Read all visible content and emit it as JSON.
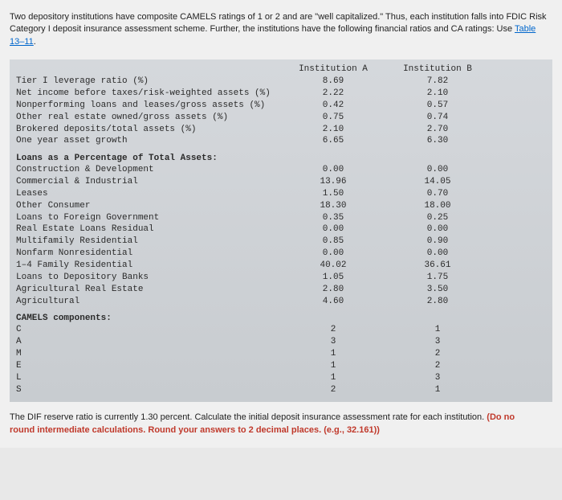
{
  "intro": {
    "p1a": "Two depository institutions have composite CAMELS ratings of 1 or 2 and are \"well capitalized.\" Thus, each institution falls into",
    "p1b": "FDIC Risk Category I deposit insurance assessment scheme. Further, the institutions have the following financial ratios and CA",
    "p1c": "ratings: Use ",
    "link": "Table 13–11",
    "period": "."
  },
  "headers": {
    "a": "Institution A",
    "b": "Institution B"
  },
  "topRows": [
    {
      "label": "Tier I leverage ratio (%)",
      "a": "8.69",
      "b": "7.82"
    },
    {
      "label": "Net income before taxes/risk-weighted assets (%)",
      "a": "2.22",
      "b": "2.10"
    },
    {
      "label": "Nonperforming loans and leases/gross assets (%)",
      "a": "0.42",
      "b": "0.57"
    },
    {
      "label": "Other real estate owned/gross assets (%)",
      "a": "0.75",
      "b": "0.74"
    },
    {
      "label": "Brokered deposits/total assets (%)",
      "a": "2.10",
      "b": "2.70"
    },
    {
      "label": "One year asset growth",
      "a": "6.65",
      "b": "6.30"
    }
  ],
  "loansTitle": "Loans as a Percentage of Total Assets:",
  "loansRows": [
    {
      "label": "Construction & Development",
      "a": "0.00",
      "b": "0.00"
    },
    {
      "label": "Commercial & Industrial",
      "a": "13.96",
      "b": "14.05"
    },
    {
      "label": "Leases",
      "a": "1.50",
      "b": "0.70"
    },
    {
      "label": "Other Consumer",
      "a": "18.30",
      "b": "18.00"
    },
    {
      "label": "Loans to Foreign Government",
      "a": "0.35",
      "b": "0.25"
    },
    {
      "label": "Real Estate Loans Residual",
      "a": "0.00",
      "b": "0.00"
    },
    {
      "label": "Multifamily Residential",
      "a": "0.85",
      "b": "0.90"
    },
    {
      "label": "Nonfarm Nonresidential",
      "a": "0.00",
      "b": "0.00"
    },
    {
      "label": "1–4 Family Residential",
      "a": "40.02",
      "b": "36.61"
    },
    {
      "label": "Loans to Depository Banks",
      "a": "1.05",
      "b": "1.75"
    },
    {
      "label": "Agricultural Real Estate",
      "a": "2.80",
      "b": "3.50"
    },
    {
      "label": "Agricultural",
      "a": "4.60",
      "b": "2.80"
    }
  ],
  "camelsTitle": "CAMELS components:",
  "camelsRows": [
    {
      "label": "C",
      "a": "2",
      "b": "1"
    },
    {
      "label": "A",
      "a": "3",
      "b": "3"
    },
    {
      "label": "M",
      "a": "1",
      "b": "2"
    },
    {
      "label": "E",
      "a": "1",
      "b": "2"
    },
    {
      "label": "L",
      "a": "1",
      "b": "3"
    },
    {
      "label": "S",
      "a": "2",
      "b": "1"
    }
  ],
  "footer": {
    "part1": "The DIF reserve ratio is currently 1.30 percent. Calculate the initial deposit insurance assessment rate for each institution. ",
    "part2": "(Do no",
    "part3": "round intermediate calculations. Round your answers to 2 decimal places. (e.g., 32.161))"
  }
}
